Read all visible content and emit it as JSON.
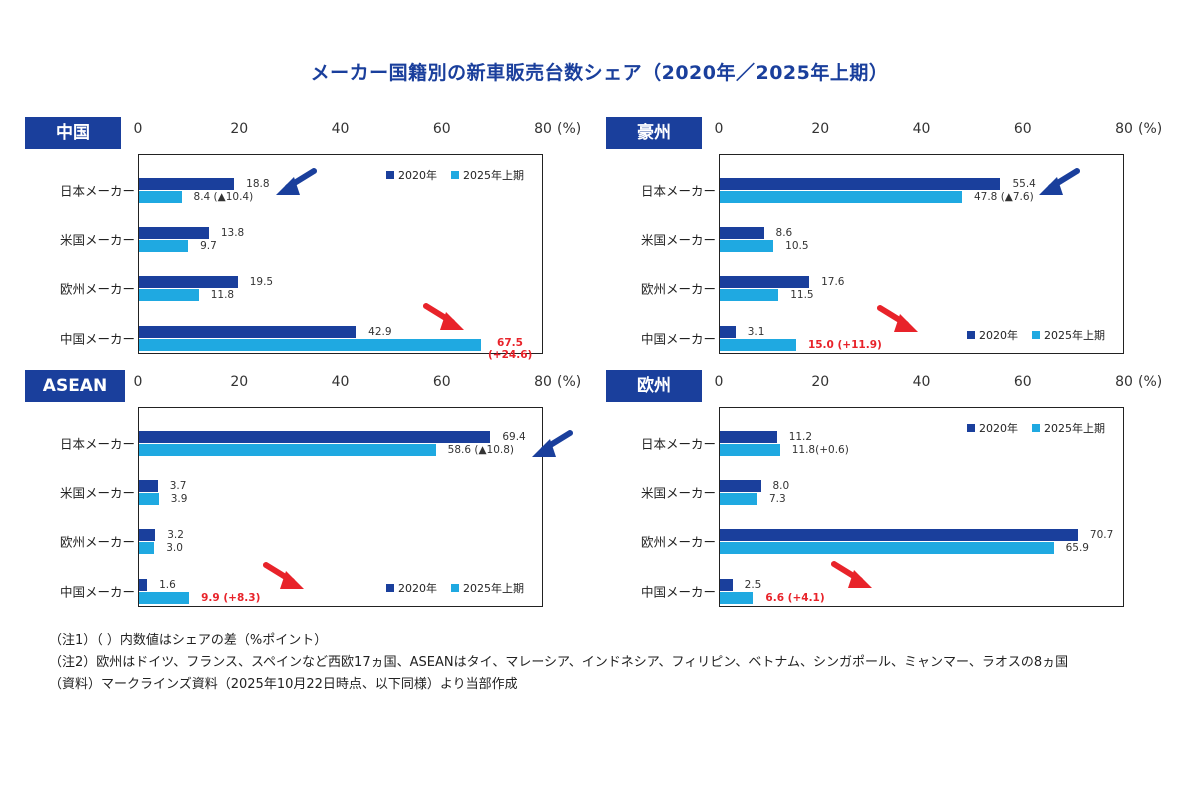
{
  "title": "メーカー国籍別の新車販売台数シェア（2020年／2025年上期）",
  "colors": {
    "s2020": "#1a3f9c",
    "s2025": "#1fa9e1",
    "highlight": "#e8232a",
    "badge": "#1a3f9c"
  },
  "notes": [
    "（注1）（ ）内数値はシェアの差（%ポイント）",
    "（注2）欧州はドイツ、フランス、スペインなど西欧17ヵ国、ASEANはタイ、マレーシア、インドネシア、フィリピン、ベトナム、シンガポール、ミャンマー、ラオスの8ヵ国",
    "（資料）マークラインズ資料（2025年10月22日時点、以下同様）より当部作成"
  ],
  "chart_data": [
    {
      "type": "bar",
      "orientation": "horizontal",
      "region": "中国",
      "categories": [
        "日本メーカー",
        "米国メーカー",
        "欧州メーカー",
        "中国メーカー"
      ],
      "xlim": [
        0,
        80
      ],
      "ticks": [
        "0",
        "20",
        "40",
        "60",
        "80"
      ],
      "unit": "(%)",
      "legend_position": "top-right",
      "series": [
        {
          "name": "2020年",
          "values": [
            18.8,
            13.8,
            19.5,
            42.9
          ],
          "labels": [
            "18.8",
            "13.8",
            "19.5",
            "42.9"
          ]
        },
        {
          "name": "2025年上期",
          "values": [
            8.4,
            9.7,
            11.8,
            67.5
          ],
          "labels": [
            "8.4 (▲10.4)",
            "9.7",
            "11.8",
            "67.5\n(+24.6)"
          ]
        }
      ],
      "highlight": {
        "category_index": 3,
        "label": "67.5 (+24.6)"
      }
    },
    {
      "type": "bar",
      "orientation": "horizontal",
      "region": "豪州",
      "categories": [
        "日本メーカー",
        "米国メーカー",
        "欧州メーカー",
        "中国メーカー"
      ],
      "xlim": [
        0,
        80
      ],
      "ticks": [
        "0",
        "20",
        "40",
        "60",
        "80"
      ],
      "unit": "(%)",
      "legend_position": "bottom-right",
      "series": [
        {
          "name": "2020年",
          "values": [
            55.4,
            8.6,
            17.6,
            3.1
          ],
          "labels": [
            "55.4",
            "8.6",
            "17.6",
            "3.1"
          ]
        },
        {
          "name": "2025年上期",
          "values": [
            47.8,
            10.5,
            11.5,
            15.0
          ],
          "labels": [
            "47.8 (▲7.6)",
            "10.5",
            "11.5",
            "15.0 (+11.9)"
          ]
        }
      ],
      "highlight": {
        "category_index": 3,
        "label": "15.0 (+11.9)"
      }
    },
    {
      "type": "bar",
      "orientation": "horizontal",
      "region": "ASEAN",
      "categories": [
        "日本メーカー",
        "米国メーカー",
        "欧州メーカー",
        "中国メーカー"
      ],
      "xlim": [
        0,
        80
      ],
      "ticks": [
        "0",
        "20",
        "40",
        "60",
        "80"
      ],
      "unit": "(%)",
      "legend_position": "bottom-right",
      "series": [
        {
          "name": "2020年",
          "values": [
            69.4,
            3.7,
            3.2,
            1.6
          ],
          "labels": [
            "69.4",
            "3.7",
            "3.2",
            "1.6"
          ]
        },
        {
          "name": "2025年上期",
          "values": [
            58.6,
            3.9,
            3.0,
            9.9
          ],
          "labels": [
            "58.6 (▲10.8)",
            "3.9",
            "3.0",
            "9.9 (+8.3)"
          ]
        }
      ],
      "highlight": {
        "category_index": 3,
        "label": "9.9 (+8.3)"
      }
    },
    {
      "type": "bar",
      "orientation": "horizontal",
      "region": "欧州",
      "categories": [
        "日本メーカー",
        "米国メーカー",
        "欧州メーカー",
        "中国メーカー"
      ],
      "xlim": [
        0,
        80
      ],
      "ticks": [
        "0",
        "20",
        "40",
        "60",
        "80"
      ],
      "unit": "(%)",
      "legend_position": "top-right",
      "series": [
        {
          "name": "2020年",
          "values": [
            11.2,
            8.0,
            70.7,
            2.5
          ],
          "labels": [
            "11.2",
            "8.0",
            "70.7",
            "2.5"
          ]
        },
        {
          "name": "2025年上期",
          "values": [
            11.8,
            7.3,
            65.9,
            6.6
          ],
          "labels": [
            "11.8(+0.6)",
            "7.3",
            "65.9",
            "6.6 (+4.1)"
          ]
        }
      ],
      "highlight": {
        "category_index": 3,
        "label": "6.6 (+4.1)"
      }
    }
  ]
}
